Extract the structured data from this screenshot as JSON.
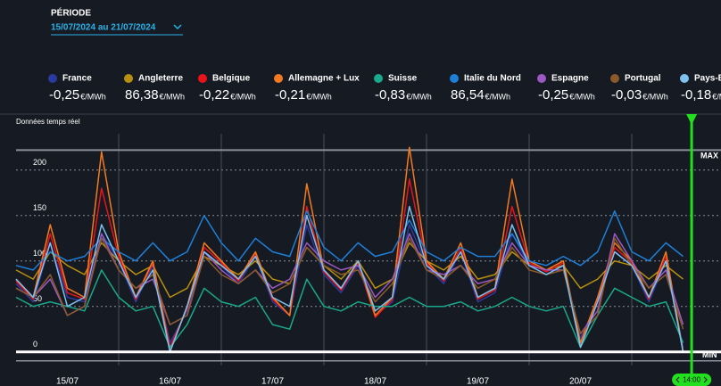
{
  "period": {
    "label": "PÉRIODE",
    "value": "15/07/2024 au 21/07/2024"
  },
  "chart_data": {
    "type": "line",
    "subtitle": "Données temps réel",
    "x": [
      0,
      4,
      8,
      12,
      16,
      20,
      24,
      28,
      32,
      36,
      40,
      44,
      48,
      52,
      56,
      60,
      64,
      68,
      72,
      76,
      80,
      84,
      88,
      92,
      96,
      100,
      104,
      108,
      112,
      116,
      120,
      124,
      128,
      132,
      136,
      140,
      144,
      148,
      152,
      156
    ],
    "xlim": [
      0,
      165
    ],
    "xticks": [
      {
        "value": 12,
        "label": "15/07"
      },
      {
        "value": 36,
        "label": "16/07"
      },
      {
        "value": 60,
        "label": "17/07"
      },
      {
        "value": 84,
        "label": "18/07"
      },
      {
        "value": 108,
        "label": "19/07"
      },
      {
        "value": 132,
        "label": "20/07"
      }
    ],
    "xgrid": [
      24,
      48,
      72,
      96,
      120,
      144
    ],
    "ylim": [
      -15,
      240
    ],
    "yticks": [
      0,
      50,
      100,
      150,
      200
    ],
    "grid": true,
    "max": {
      "value": 222,
      "label": "MAX"
    },
    "min": {
      "value": 0,
      "label": "MIN"
    },
    "cursor": {
      "x": 158,
      "label": "14:00"
    },
    "series": [
      {
        "name": "France",
        "color": "#2b3a9e",
        "price": "-0,25",
        "unit": "€/MWh",
        "values": [
          75,
          55,
          120,
          60,
          55,
          130,
          100,
          55,
          95,
          10,
          45,
          110,
          95,
          75,
          105,
          55,
          40,
          140,
          85,
          65,
          95,
          40,
          55,
          140,
          95,
          75,
          110,
          55,
          65,
          130,
          95,
          85,
          95,
          15,
          55,
          110,
          95,
          55,
          100,
          5
        ]
      },
      {
        "name": "Angleterre",
        "color": "#b8900f",
        "price": "86,38",
        "unit": "€/MWh",
        "values": [
          90,
          80,
          110,
          95,
          85,
          120,
          100,
          85,
          95,
          60,
          70,
          105,
          95,
          85,
          100,
          80,
          75,
          115,
          95,
          80,
          100,
          70,
          80,
          120,
          100,
          90,
          105,
          80,
          85,
          110,
          95,
          90,
          95,
          70,
          80,
          100,
          95,
          80,
          95,
          80
        ]
      },
      {
        "name": "Belgique",
        "color": "#e8141c",
        "price": "-0,22",
        "unit": "€/MWh",
        "values": [
          78,
          58,
          130,
          65,
          58,
          180,
          105,
          58,
          98,
          5,
          48,
          115,
          98,
          78,
          108,
          58,
          40,
          160,
          88,
          68,
          98,
          38,
          58,
          190,
          98,
          78,
          115,
          58,
          68,
          160,
          98,
          88,
          98,
          8,
          58,
          115,
          98,
          58,
          105,
          0
        ]
      },
      {
        "name": "Allemagne + Lux",
        "color": "#f47a1f",
        "price": "-0,21",
        "unit": "€/MWh",
        "values": [
          80,
          60,
          140,
          70,
          60,
          220,
          110,
          60,
          100,
          0,
          50,
          120,
          100,
          80,
          110,
          60,
          40,
          185,
          90,
          70,
          100,
          40,
          60,
          225,
          100,
          80,
          120,
          60,
          70,
          190,
          100,
          90,
          100,
          10,
          60,
          120,
          100,
          60,
          110,
          0
        ]
      },
      {
        "name": "Suisse",
        "color": "#1aa88a",
        "price": "-0,83",
        "unit": "€/MWh",
        "values": [
          60,
          50,
          55,
          50,
          45,
          90,
          60,
          45,
          50,
          5,
          30,
          70,
          55,
          50,
          60,
          30,
          25,
          80,
          50,
          45,
          55,
          50,
          50,
          60,
          50,
          50,
          55,
          45,
          50,
          60,
          50,
          45,
          50,
          5,
          40,
          70,
          60,
          50,
          55,
          10
        ]
      },
      {
        "name": "Italie du Nord",
        "color": "#1e7fd8",
        "price": "86,54",
        "unit": "€/MWh",
        "values": [
          95,
          90,
          110,
          100,
          105,
          125,
          110,
          100,
          120,
          100,
          110,
          150,
          120,
          100,
          125,
          110,
          105,
          155,
          115,
          100,
          120,
          105,
          110,
          145,
          110,
          100,
          115,
          105,
          105,
          130,
          100,
          95,
          105,
          95,
          110,
          155,
          110,
          100,
          120,
          105
        ]
      },
      {
        "name": "Espagne",
        "color": "#9b59c4",
        "price": "-0,25",
        "unit": "€/MWh",
        "values": [
          70,
          60,
          80,
          40,
          50,
          130,
          90,
          70,
          80,
          30,
          40,
          110,
          90,
          75,
          90,
          70,
          80,
          120,
          100,
          90,
          95,
          60,
          80,
          130,
          90,
          85,
          95,
          75,
          80,
          120,
          95,
          90,
          90,
          20,
          45,
          130,
          100,
          70,
          90,
          30
        ]
      },
      {
        "name": "Portugal",
        "color": "#8b5a2b",
        "price": "-0,03",
        "unit": "€/MWh",
        "values": [
          70,
          60,
          85,
          40,
          50,
          125,
          90,
          70,
          85,
          30,
          40,
          105,
          85,
          75,
          90,
          65,
          75,
          115,
          95,
          85,
          90,
          55,
          75,
          125,
          90,
          80,
          95,
          70,
          80,
          115,
          90,
          85,
          90,
          20,
          40,
          125,
          95,
          70,
          85,
          25
        ]
      },
      {
        "name": "Pays-Bas",
        "color": "#7ec0ee",
        "price": "-0,18",
        "unit": "€/MWh",
        "values": [
          80,
          60,
          120,
          50,
          60,
          140,
          100,
          60,
          90,
          0,
          50,
          110,
          95,
          80,
          105,
          60,
          50,
          150,
          90,
          70,
          100,
          45,
          60,
          160,
          95,
          80,
          110,
          60,
          70,
          140,
          95,
          85,
          95,
          5,
          55,
          110,
          95,
          60,
          100,
          0
        ]
      }
    ]
  }
}
